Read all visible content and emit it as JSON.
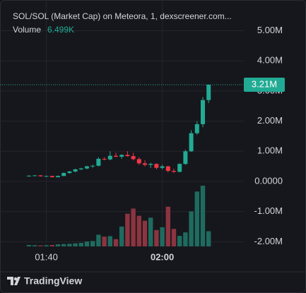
{
  "chart_data": {
    "type": "candlestick",
    "title": "SOL/SOL (Market Cap) on Meteora, 1, dexscreener.com...",
    "volume_name": "Volume",
    "volume_last": {
      "value": 6499,
      "label": "6.499K"
    },
    "last_price": {
      "value": 3210000,
      "label": "3.21M"
    },
    "categories": [
      null,
      null,
      null,
      "01:40",
      null,
      null,
      null,
      null,
      null,
      null,
      null,
      null,
      null,
      null,
      null,
      null,
      null,
      null,
      null,
      null,
      null,
      null,
      null,
      "02:00",
      null,
      null,
      null,
      null,
      null,
      null,
      null,
      null
    ],
    "open": [
      170000,
      190000,
      200000,
      170000,
      180000,
      140000,
      180000,
      280000,
      330000,
      400000,
      430000,
      500000,
      520000,
      750000,
      730000,
      850000,
      820000,
      880000,
      840000,
      740000,
      600000,
      550000,
      580000,
      450000,
      500000,
      350000,
      320000,
      580000,
      1000000,
      1600000,
      1900000,
      2700000
    ],
    "high": [
      200000,
      210000,
      210000,
      190000,
      190000,
      200000,
      300000,
      350000,
      420000,
      450000,
      520000,
      550000,
      800000,
      800000,
      1000000,
      950000,
      900000,
      1000000,
      950000,
      800000,
      700000,
      620000,
      600000,
      550000,
      520000,
      420000,
      600000,
      1050000,
      1700000,
      2000000,
      2800000,
      3210000
    ],
    "low": [
      160000,
      180000,
      160000,
      150000,
      130000,
      130000,
      170000,
      250000,
      300000,
      380000,
      400000,
      450000,
      500000,
      700000,
      700000,
      800000,
      750000,
      820000,
      700000,
      550000,
      500000,
      450000,
      400000,
      400000,
      300000,
      280000,
      300000,
      550000,
      980000,
      1550000,
      1800000,
      2600000
    ],
    "close": [
      190000,
      200000,
      170000,
      180000,
      140000,
      180000,
      280000,
      330000,
      400000,
      430000,
      500000,
      520000,
      750000,
      730000,
      850000,
      820000,
      880000,
      840000,
      740000,
      600000,
      550000,
      580000,
      450000,
      500000,
      350000,
      320000,
      580000,
      1000000,
      1600000,
      1900000,
      2700000,
      3210000
    ],
    "volume": [
      600,
      500,
      400,
      500,
      600,
      900,
      1000,
      1100,
      1300,
      1500,
      2100,
      2300,
      5000,
      4200,
      4400,
      3100,
      8500,
      14000,
      16200,
      13100,
      11000,
      12300,
      7000,
      8200,
      17000,
      7500,
      4500,
      6000,
      15000,
      23500,
      26000,
      6499
    ],
    "up_color": "#22ab94",
    "down_color": "#f23645",
    "volume_up_color": "#1e6b5f",
    "volume_down_color": "#8c3440",
    "ylim": [
      -2180000,
      6020000
    ],
    "yticks": [
      {
        "value": -2000000,
        "label": "-2.00M"
      },
      {
        "value": -1000000,
        "label": "-1.00M"
      },
      {
        "value": 0,
        "label": "0.0000"
      },
      {
        "value": 1000000,
        "label": "1.00M"
      },
      {
        "value": 2000000,
        "label": "2.00M"
      },
      {
        "value": 3000000,
        "label": "3.00M"
      },
      {
        "value": 4000000,
        "label": "4.00M"
      },
      {
        "value": 5000000,
        "label": "5.00M"
      }
    ],
    "grid": true,
    "brand": "TradingView"
  }
}
